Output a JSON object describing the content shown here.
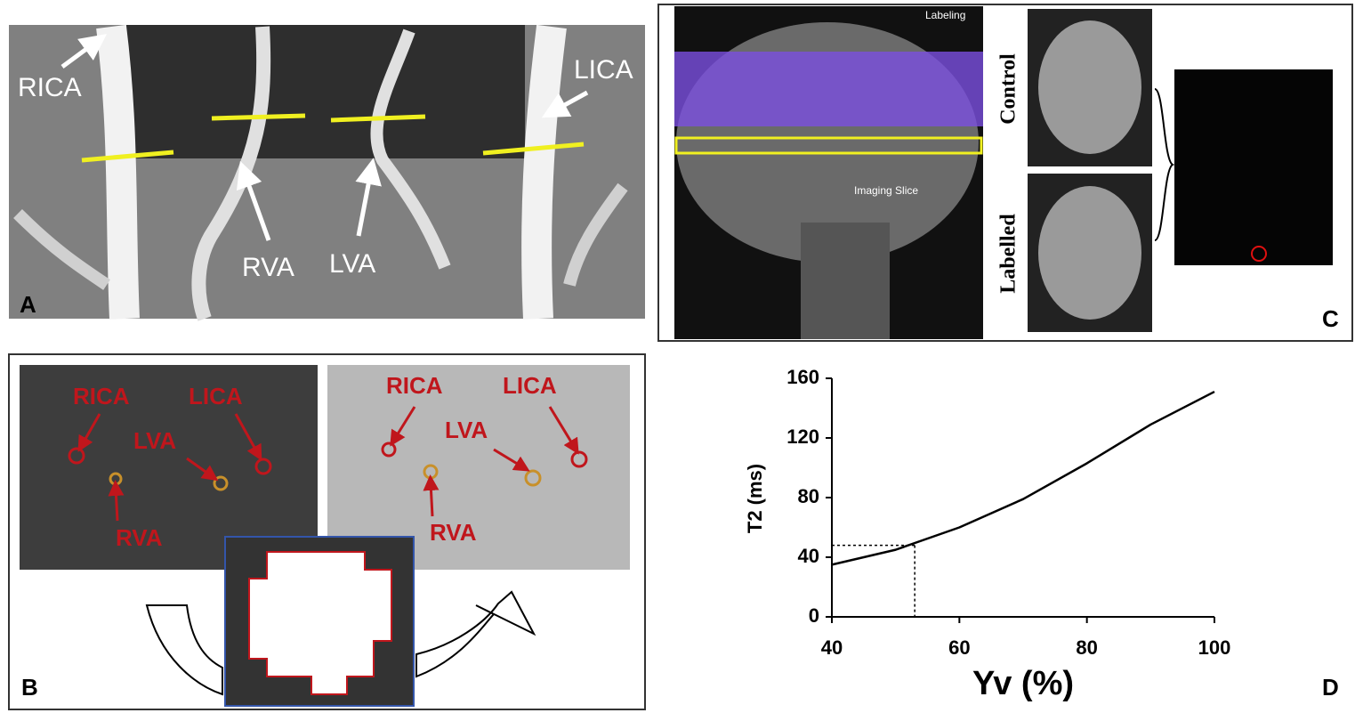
{
  "panel_a": {
    "label": "A",
    "annotations": [
      "RICA",
      "LICA",
      "RVA",
      "LVA"
    ]
  },
  "panel_b": {
    "label": "B",
    "left_annotations": [
      "RICA",
      "LICA",
      "LVA",
      "RVA"
    ],
    "right_annotations": [
      "RICA",
      "LICA",
      "LVA",
      "RVA"
    ]
  },
  "panel_c": {
    "label": "C",
    "annotations": [
      "Labeling",
      "Imaging Slice"
    ],
    "row_labels": [
      "Control",
      "Labelled"
    ]
  },
  "panel_d": {
    "label": "D"
  },
  "chart_data": {
    "type": "line",
    "x_label": "Yv (%)",
    "y_label": "T2 (ms)",
    "x": [
      40,
      50,
      60,
      70,
      80,
      90,
      100
    ],
    "values": [
      35,
      45,
      60,
      79,
      103,
      129,
      151
    ],
    "color": "#000000",
    "xlim": [
      40,
      100
    ],
    "xticks": [
      40,
      60,
      80,
      100
    ],
    "ylim": [
      0,
      160
    ],
    "yticks": [
      0,
      40,
      80,
      120,
      160
    ],
    "marker": {
      "x": 53,
      "y": 48
    }
  }
}
